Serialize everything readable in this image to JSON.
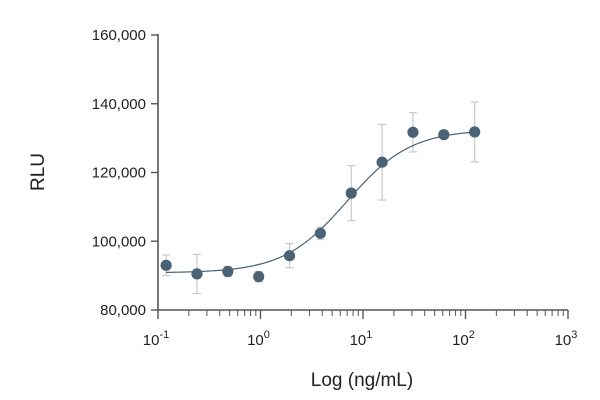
{
  "chart_data": {
    "type": "scatter",
    "title": "",
    "xlabel": "Log (ng/mL)",
    "ylabel": "RLU",
    "x_scale": "log",
    "xlim": [
      0.1,
      1000
    ],
    "ylim": [
      80000,
      160000
    ],
    "x_tick_labels": [
      {
        "base": "10",
        "exp": "-1"
      },
      {
        "base": "10",
        "exp": "0"
      },
      {
        "base": "10",
        "exp": "1"
      },
      {
        "base": "10",
        "exp": "2"
      },
      {
        "base": "10",
        "exp": "3"
      }
    ],
    "y_ticks": [
      80000,
      100000,
      120000,
      140000,
      160000
    ],
    "y_tick_labels": [
      "80,000",
      "100,000",
      "120,000",
      "140,000",
      "160,000"
    ],
    "grid": false,
    "colors": {
      "points": "#4a6275",
      "fit_line": "#4a6275",
      "error_bars": "#c8c8c8",
      "axes": "#555555"
    },
    "series": [
      {
        "points": [
          {
            "x": 0.12,
            "y": 93000,
            "err": 3000
          },
          {
            "x": 0.24,
            "y": 90500,
            "err": 5700
          },
          {
            "x": 0.48,
            "y": 91200,
            "err": 1500
          },
          {
            "x": 0.96,
            "y": 89700,
            "err": 1500
          },
          {
            "x": 1.92,
            "y": 95800,
            "err": 3500
          },
          {
            "x": 3.84,
            "y": 102300,
            "err": 1800
          },
          {
            "x": 7.68,
            "y": 114000,
            "err": 8000
          },
          {
            "x": 15.36,
            "y": 123000,
            "err": 11000
          },
          {
            "x": 30.72,
            "y": 131700,
            "err": 5700
          },
          {
            "x": 61.44,
            "y": 131000,
            "err": 0
          },
          {
            "x": 122.88,
            "y": 131800,
            "err": 8700
          }
        ]
      }
    ],
    "fit": {
      "type": "4PL",
      "bottom": 90800,
      "top": 132500,
      "ec50": 7.0,
      "hill": 1.4,
      "x_range": [
        0.12,
        122.88
      ]
    }
  }
}
